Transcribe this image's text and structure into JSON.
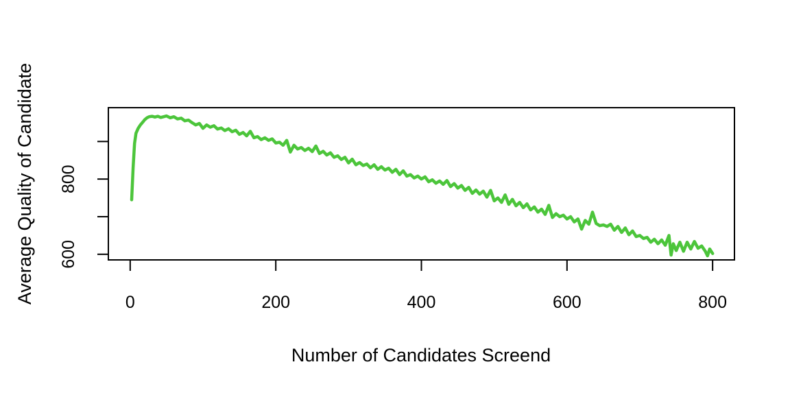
{
  "chart_data": {
    "type": "line",
    "title": "",
    "xlabel": "Number of Candidates Screend",
    "ylabel": "Average Quality of Candidate",
    "xlim": [
      -30,
      830
    ],
    "ylim": [
      585,
      990
    ],
    "x_ticks": [
      0,
      200,
      400,
      600,
      800
    ],
    "x_tick_labels": [
      "0",
      "200",
      "400",
      "600",
      "800"
    ],
    "y_ticks": [
      600,
      700,
      800,
      900
    ],
    "y_tick_labels": [
      "600",
      "",
      "800",
      ""
    ],
    "grid": false,
    "legend": "none",
    "series": [
      {
        "color": "#4cc53b",
        "points": [
          [
            2,
            745
          ],
          [
            4,
            830
          ],
          [
            6,
            895
          ],
          [
            8,
            922
          ],
          [
            11,
            935
          ],
          [
            14,
            944
          ],
          [
            17,
            951
          ],
          [
            20,
            958
          ],
          [
            23,
            963
          ],
          [
            26,
            966
          ],
          [
            30,
            967
          ],
          [
            34,
            965
          ],
          [
            38,
            967
          ],
          [
            42,
            964
          ],
          [
            46,
            966
          ],
          [
            50,
            968
          ],
          [
            55,
            963
          ],
          [
            60,
            966
          ],
          [
            65,
            960
          ],
          [
            70,
            962
          ],
          [
            75,
            955
          ],
          [
            80,
            957
          ],
          [
            85,
            950
          ],
          [
            90,
            944
          ],
          [
            95,
            948
          ],
          [
            100,
            935
          ],
          [
            105,
            944
          ],
          [
            110,
            938
          ],
          [
            115,
            942
          ],
          [
            120,
            933
          ],
          [
            125,
            936
          ],
          [
            130,
            929
          ],
          [
            135,
            934
          ],
          [
            140,
            926
          ],
          [
            145,
            930
          ],
          [
            150,
            919
          ],
          [
            155,
            924
          ],
          [
            160,
            915
          ],
          [
            165,
            927
          ],
          [
            170,
            910
          ],
          [
            175,
            913
          ],
          [
            180,
            905
          ],
          [
            185,
            910
          ],
          [
            190,
            903
          ],
          [
            195,
            907
          ],
          [
            200,
            896
          ],
          [
            205,
            898
          ],
          [
            210,
            890
          ],
          [
            215,
            903
          ],
          [
            220,
            872
          ],
          [
            225,
            890
          ],
          [
            230,
            880
          ],
          [
            235,
            884
          ],
          [
            240,
            876
          ],
          [
            245,
            882
          ],
          [
            250,
            873
          ],
          [
            255,
            888
          ],
          [
            260,
            868
          ],
          [
            265,
            874
          ],
          [
            270,
            864
          ],
          [
            275,
            870
          ],
          [
            280,
            858
          ],
          [
            285,
            862
          ],
          [
            290,
            852
          ],
          [
            295,
            858
          ],
          [
            300,
            843
          ],
          [
            305,
            853
          ],
          [
            310,
            838
          ],
          [
            315,
            844
          ],
          [
            320,
            836
          ],
          [
            325,
            840
          ],
          [
            330,
            830
          ],
          [
            335,
            838
          ],
          [
            340,
            826
          ],
          [
            345,
            833
          ],
          [
            350,
            824
          ],
          [
            355,
            829
          ],
          [
            360,
            818
          ],
          [
            365,
            826
          ],
          [
            370,
            812
          ],
          [
            375,
            822
          ],
          [
            380,
            808
          ],
          [
            385,
            812
          ],
          [
            390,
            803
          ],
          [
            395,
            808
          ],
          [
            400,
            800
          ],
          [
            405,
            806
          ],
          [
            410,
            793
          ],
          [
            415,
            798
          ],
          [
            420,
            789
          ],
          [
            425,
            795
          ],
          [
            430,
            786
          ],
          [
            435,
            796
          ],
          [
            440,
            780
          ],
          [
            445,
            788
          ],
          [
            450,
            776
          ],
          [
            455,
            783
          ],
          [
            460,
            770
          ],
          [
            465,
            778
          ],
          [
            470,
            762
          ],
          [
            475,
            771
          ],
          [
            480,
            760
          ],
          [
            485,
            768
          ],
          [
            490,
            752
          ],
          [
            495,
            770
          ],
          [
            500,
            742
          ],
          [
            505,
            750
          ],
          [
            510,
            738
          ],
          [
            515,
            758
          ],
          [
            520,
            733
          ],
          [
            525,
            746
          ],
          [
            530,
            729
          ],
          [
            535,
            738
          ],
          [
            540,
            724
          ],
          [
            545,
            734
          ],
          [
            550,
            718
          ],
          [
            555,
            726
          ],
          [
            560,
            712
          ],
          [
            565,
            720
          ],
          [
            570,
            706
          ],
          [
            575,
            730
          ],
          [
            580,
            698
          ],
          [
            585,
            708
          ],
          [
            590,
            700
          ],
          [
            595,
            704
          ],
          [
            600,
            694
          ],
          [
            605,
            700
          ],
          [
            610,
            686
          ],
          [
            615,
            694
          ],
          [
            620,
            667
          ],
          [
            625,
            690
          ],
          [
            630,
            680
          ],
          [
            635,
            712
          ],
          [
            640,
            682
          ],
          [
            645,
            676
          ],
          [
            650,
            678
          ],
          [
            655,
            674
          ],
          [
            660,
            680
          ],
          [
            665,
            664
          ],
          [
            670,
            674
          ],
          [
            675,
            658
          ],
          [
            680,
            670
          ],
          [
            685,
            652
          ],
          [
            690,
            662
          ],
          [
            695,
            647
          ],
          [
            700,
            650
          ],
          [
            705,
            642
          ],
          [
            710,
            645
          ],
          [
            715,
            632
          ],
          [
            720,
            640
          ],
          [
            725,
            628
          ],
          [
            730,
            638
          ],
          [
            735,
            624
          ],
          [
            740,
            650
          ],
          [
            743,
            598
          ],
          [
            746,
            628
          ],
          [
            750,
            610
          ],
          [
            755,
            632
          ],
          [
            760,
            608
          ],
          [
            765,
            632
          ],
          [
            770,
            614
          ],
          [
            775,
            634
          ],
          [
            780,
            616
          ],
          [
            785,
            622
          ],
          [
            790,
            608
          ],
          [
            793,
            596
          ],
          [
            796,
            614
          ],
          [
            800,
            602
          ]
        ]
      }
    ]
  }
}
